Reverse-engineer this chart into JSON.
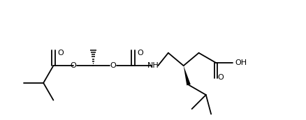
{
  "bg": "#ffffff",
  "lc": "#000000",
  "lw": 1.3,
  "fs": 8.0,
  "figsize": [
    4.38,
    1.72
  ],
  "dpi": 100,
  "xlim": [
    5,
    435
  ],
  "ylim": [
    5,
    165
  ]
}
